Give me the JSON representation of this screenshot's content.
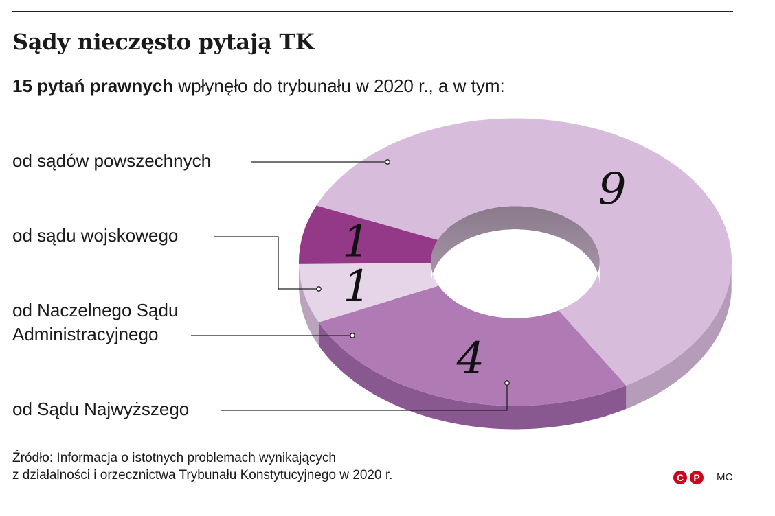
{
  "title": "Sądy nieczęsto pytają TK",
  "subtitle": {
    "bold": "15 pytań prawnych",
    "rest": " wpłynęło do trybunału w 2020 r., a w tym:"
  },
  "chart_data": {
    "type": "pie",
    "title": "Sądy nieczęsto pytają TK",
    "total": 15,
    "slices": [
      {
        "label": "od sądów powszechnych",
        "value": 9,
        "color": "#d7bddb",
        "side": "#b59cb8"
      },
      {
        "label": "od Sądu Najwyższego",
        "value": 4,
        "color": "#b07ab5",
        "side": "#8a5890"
      },
      {
        "label": "od Naczelnego Sądu Administracyjnego",
        "value": 1,
        "color": "#e6d4e8",
        "side": "#bba3be"
      },
      {
        "label": "od sądu wojskowego",
        "value": 1,
        "color": "#943888",
        "side": "#6e2466"
      }
    ]
  },
  "labels": {
    "powszechnych": "od sądów powszechnych",
    "wojskowego": "od sądu wojskowego",
    "nsa_line1": "od Naczelnego Sądu",
    "nsa_line2": "Administracyjnego",
    "najwyzszego": "od Sądu Najwyższego"
  },
  "source": {
    "line1": "Źródło: Informacja o istotnych problemach wynikających",
    "line2": "z działalności i orzecznictwa Trybunału Konstytucyjnego w 2020 r."
  },
  "logo": {
    "c": "C",
    "p": "P"
  },
  "author": "MC"
}
